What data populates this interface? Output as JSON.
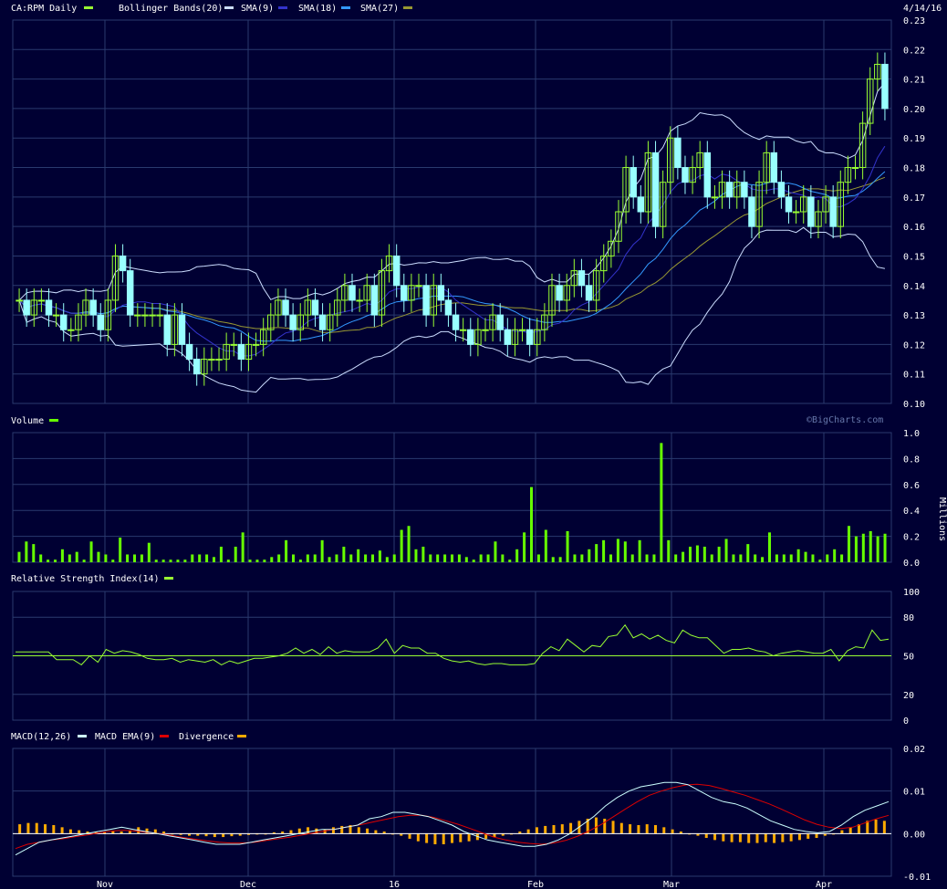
{
  "header": {
    "symbol_label": "CA:RPM Daily",
    "bollinger_label": "Bollinger Bands(20)",
    "sma9_label": "SMA(9)",
    "sma18_label": "SMA(18)",
    "sma27_label": "SMA(27)",
    "date_label": "4/14/16"
  },
  "volume_panel": {
    "label": "Volume",
    "watermark": "©BigCharts.com",
    "unit_label": "Millions"
  },
  "rsi_panel": {
    "label": "Relative Strength Index(14)"
  },
  "macd_panel": {
    "macd_label": "MACD(12,26)",
    "ema_label": "MACD EMA(9)",
    "divergence_label": "Divergence"
  },
  "colors": {
    "background": "#000033",
    "grid": "#2a3a6e",
    "candle_up": "#99ff33",
    "candle_down": "#99ffff",
    "bollinger": "#ccddff",
    "sma9": "#3333cc",
    "sma18": "#3399ff",
    "sma27": "#999933",
    "volume": "#66ff00",
    "rsi": "#99ff33",
    "macd": "#ccffff",
    "macd_ema": "#dd0000",
    "divergence": "#ffaa00"
  },
  "chart_data": [
    {
      "type": "candlestick",
      "panel": "price",
      "title": "CA:RPM Daily",
      "date_shown": "4/14/16",
      "ylim": [
        0.1,
        0.23
      ],
      "yticks": [
        "0.10",
        "0.11",
        "0.12",
        "0.13",
        "0.14",
        "0.15",
        "0.16",
        "0.17",
        "0.18",
        "0.19",
        "0.20",
        "0.21",
        "0.22",
        "0.23"
      ],
      "x_tick_labels": [
        "Nov",
        "Dec",
        "16",
        "Feb",
        "Mar",
        "Apr"
      ],
      "close": [
        0.135,
        0.13,
        0.135,
        0.135,
        0.13,
        0.13,
        0.125,
        0.125,
        0.13,
        0.135,
        0.13,
        0.125,
        0.135,
        0.15,
        0.145,
        0.13,
        0.13,
        0.13,
        0.13,
        0.13,
        0.12,
        0.13,
        0.12,
        0.115,
        0.11,
        0.115,
        0.115,
        0.115,
        0.12,
        0.12,
        0.115,
        0.12,
        0.12,
        0.125,
        0.13,
        0.135,
        0.13,
        0.125,
        0.13,
        0.135,
        0.13,
        0.125,
        0.13,
        0.135,
        0.14,
        0.135,
        0.135,
        0.14,
        0.13,
        0.145,
        0.15,
        0.14,
        0.135,
        0.14,
        0.14,
        0.13,
        0.14,
        0.135,
        0.13,
        0.125,
        0.125,
        0.12,
        0.125,
        0.125,
        0.13,
        0.125,
        0.12,
        0.125,
        0.125,
        0.12,
        0.125,
        0.13,
        0.14,
        0.135,
        0.14,
        0.145,
        0.14,
        0.135,
        0.145,
        0.15,
        0.155,
        0.165,
        0.18,
        0.17,
        0.165,
        0.185,
        0.16,
        0.175,
        0.19,
        0.18,
        0.175,
        0.18,
        0.185,
        0.17,
        0.17,
        0.175,
        0.17,
        0.175,
        0.17,
        0.16,
        0.175,
        0.185,
        0.175,
        0.17,
        0.165,
        0.165,
        0.17,
        0.16,
        0.165,
        0.17,
        0.16,
        0.175,
        0.18,
        0.18,
        0.195,
        0.21,
        0.215,
        0.2
      ]
    },
    {
      "type": "bar",
      "panel": "volume",
      "unit": "Millions",
      "ylim": [
        0,
        1.0
      ],
      "yticks": [
        "0.0",
        "0.2",
        "0.4",
        "0.6",
        "0.8",
        "1.0"
      ],
      "values": [
        0.08,
        0.16,
        0.14,
        0.06,
        0.02,
        0.02,
        0.1,
        0.06,
        0.08,
        0.02,
        0.16,
        0.08,
        0.06,
        0.02,
        0.19,
        0.06,
        0.06,
        0.06,
        0.15,
        0.02,
        0.02,
        0.02,
        0.02,
        0.02,
        0.06,
        0.06,
        0.06,
        0.04,
        0.12,
        0.02,
        0.12,
        0.23,
        0.02,
        0.02,
        0.02,
        0.04,
        0.06,
        0.17,
        0.06,
        0.02,
        0.06,
        0.06,
        0.17,
        0.04,
        0.06,
        0.12,
        0.06,
        0.1,
        0.06,
        0.06,
        0.09,
        0.04,
        0.06,
        0.25,
        0.28,
        0.1,
        0.12,
        0.06,
        0.06,
        0.06,
        0.06,
        0.06,
        0.04,
        0.02,
        0.06,
        0.06,
        0.16,
        0.06,
        0.02,
        0.1,
        0.23,
        0.58,
        0.06,
        0.25,
        0.04,
        0.04,
        0.24,
        0.06,
        0.06,
        0.1,
        0.14,
        0.17,
        0.06,
        0.18,
        0.16,
        0.06,
        0.17,
        0.06,
        0.06,
        0.92,
        0.17,
        0.06,
        0.08,
        0.12,
        0.13,
        0.12,
        0.06,
        0.12,
        0.18,
        0.06,
        0.06,
        0.14,
        0.06,
        0.04,
        0.23,
        0.06,
        0.06,
        0.06,
        0.1,
        0.08,
        0.06,
        0.02,
        0.06,
        0.1,
        0.06,
        0.28,
        0.2,
        0.22,
        0.24,
        0.2,
        0.22
      ]
    },
    {
      "type": "line",
      "panel": "rsi",
      "title": "Relative Strength Index(14)",
      "ylim": [
        0,
        100
      ],
      "yticks": [
        "0",
        "20",
        "50",
        "80",
        "100"
      ],
      "reference_line": 50,
      "values": [
        53,
        53,
        53,
        53,
        53,
        47,
        47,
        47,
        43,
        50,
        45,
        55,
        52,
        54,
        53,
        51,
        48,
        47,
        47,
        48,
        45,
        47,
        46,
        45,
        47,
        43,
        46,
        44,
        46,
        48,
        48,
        49,
        50,
        52,
        56,
        52,
        55,
        51,
        57,
        52,
        54,
        53,
        53,
        53,
        56,
        63,
        52,
        58,
        56,
        56,
        52,
        52,
        48,
        46,
        45,
        46,
        44,
        43,
        44,
        44,
        43,
        43,
        43,
        44,
        52,
        57,
        54,
        63,
        58,
        53,
        58,
        57,
        65,
        66,
        74,
        64,
        67,
        63,
        66,
        62,
        60,
        70,
        66,
        64,
        64,
        58,
        52,
        55,
        55,
        56,
        54,
        53,
        50,
        52,
        53,
        54,
        53,
        52,
        52,
        55,
        46,
        54,
        57,
        56,
        70,
        62,
        63
      ]
    },
    {
      "type": "bar_line",
      "panel": "macd",
      "title": "MACD(12,26)",
      "ylim": [
        -0.01,
        0.02
      ],
      "yticks": [
        "-0.01",
        "0.00",
        "0.01",
        "0.02"
      ],
      "series": [
        {
          "name": "MACD(12,26)",
          "values": [
            -0.005,
            -0.0035,
            -0.002,
            -0.0015,
            -0.001,
            -0.0005,
            0.0,
            0.0005,
            0.001,
            0.0015,
            0.001,
            0.0005,
            0.0,
            -0.0005,
            -0.001,
            -0.0015,
            -0.002,
            -0.0025,
            -0.0025,
            -0.0025,
            -0.002,
            -0.0015,
            -0.001,
            -0.0005,
            0.0,
            0.0005,
            0.001,
            0.001,
            0.0015,
            0.002,
            0.0035,
            0.004,
            0.005,
            0.005,
            0.0045,
            0.004,
            0.003,
            0.002,
            0.0005,
            -0.0005,
            -0.0015,
            -0.002,
            -0.0025,
            -0.003,
            -0.003,
            -0.0025,
            -0.0015,
            0.0,
            0.002,
            0.004,
            0.0065,
            0.0085,
            0.01,
            0.011,
            0.0115,
            0.012,
            0.012,
            0.0115,
            0.01,
            0.0085,
            0.0075,
            0.007,
            0.006,
            0.0045,
            0.003,
            0.002,
            0.001,
            0.0005,
            0.0002,
            0.0005,
            0.002,
            0.004,
            0.0055,
            0.0065,
            0.0075
          ]
        },
        {
          "name": "MACD EMA(9)",
          "values": [
            -0.0035,
            -0.0025,
            -0.002,
            -0.0015,
            -0.0012,
            -0.0007,
            -0.0003,
            0.0002,
            0.0006,
            0.0008,
            0.0006,
            0.0003,
            0.0,
            -0.0004,
            -0.0009,
            -0.0013,
            -0.0017,
            -0.002,
            -0.0022,
            -0.0022,
            -0.002,
            -0.0016,
            -0.0012,
            -0.0008,
            -0.0003,
            0.0002,
            0.0007,
            0.0012,
            0.0017,
            0.0022,
            0.0028,
            0.0034,
            0.004,
            0.0043,
            0.0043,
            0.0038,
            0.003,
            0.0022,
            0.0012,
            0.0002,
            -0.0008,
            -0.0015,
            -0.002,
            -0.0023,
            -0.0025,
            -0.0022,
            -0.0016,
            -0.0006,
            0.0007,
            0.0022,
            0.004,
            0.0058,
            0.0075,
            0.009,
            0.01,
            0.0108,
            0.0114,
            0.0116,
            0.0113,
            0.0106,
            0.0098,
            0.009,
            0.008,
            0.007,
            0.0058,
            0.0045,
            0.0032,
            0.0022,
            0.0015,
            0.0012,
            0.0015,
            0.0025,
            0.0035,
            0.0043
          ]
        },
        {
          "name": "Divergence",
          "values": [
            0.0022,
            0.0025,
            0.0025,
            0.0022,
            0.002,
            0.0015,
            0.001,
            0.0008,
            0.0005,
            0.0005,
            0.0004,
            0.0006,
            0.0005,
            0.0008,
            0.0015,
            0.0012,
            0.001,
            0.0005,
            0.0,
            -0.0003,
            -0.0005,
            -0.0005,
            -0.0006,
            -0.0008,
            -0.0008,
            -0.0006,
            -0.0005,
            -0.0003,
            -0.0002,
            0.0,
            0.0003,
            0.0005,
            0.0008,
            0.0012,
            0.0015,
            0.0012,
            0.001,
            0.0015,
            0.0018,
            0.002,
            0.0015,
            0.0012,
            0.0008,
            0.0005,
            0.0,
            -0.0005,
            -0.0012,
            -0.0018,
            -0.0022,
            -0.0025,
            -0.0025,
            -0.0022,
            -0.002,
            -0.0018,
            -0.0015,
            -0.0012,
            -0.0008,
            -0.0005,
            0.0,
            0.0005,
            0.001,
            0.0015,
            0.0018,
            0.002,
            0.0022,
            0.0025,
            0.003,
            0.0035,
            0.0038,
            0.0035,
            0.003,
            0.0025,
            0.0022,
            0.002,
            0.0022,
            0.002,
            0.0015,
            0.001,
            0.0005,
            0.0,
            -0.0005,
            -0.001,
            -0.0015,
            -0.0018,
            -0.002,
            -0.002,
            -0.0022,
            -0.0022,
            -0.002,
            -0.0022,
            -0.002,
            -0.0018,
            -0.0015,
            -0.0012,
            -0.001,
            -0.0005,
            0.0,
            0.0008,
            0.0015,
            0.0022,
            0.003,
            0.0033,
            0.003
          ]
        }
      ]
    }
  ]
}
